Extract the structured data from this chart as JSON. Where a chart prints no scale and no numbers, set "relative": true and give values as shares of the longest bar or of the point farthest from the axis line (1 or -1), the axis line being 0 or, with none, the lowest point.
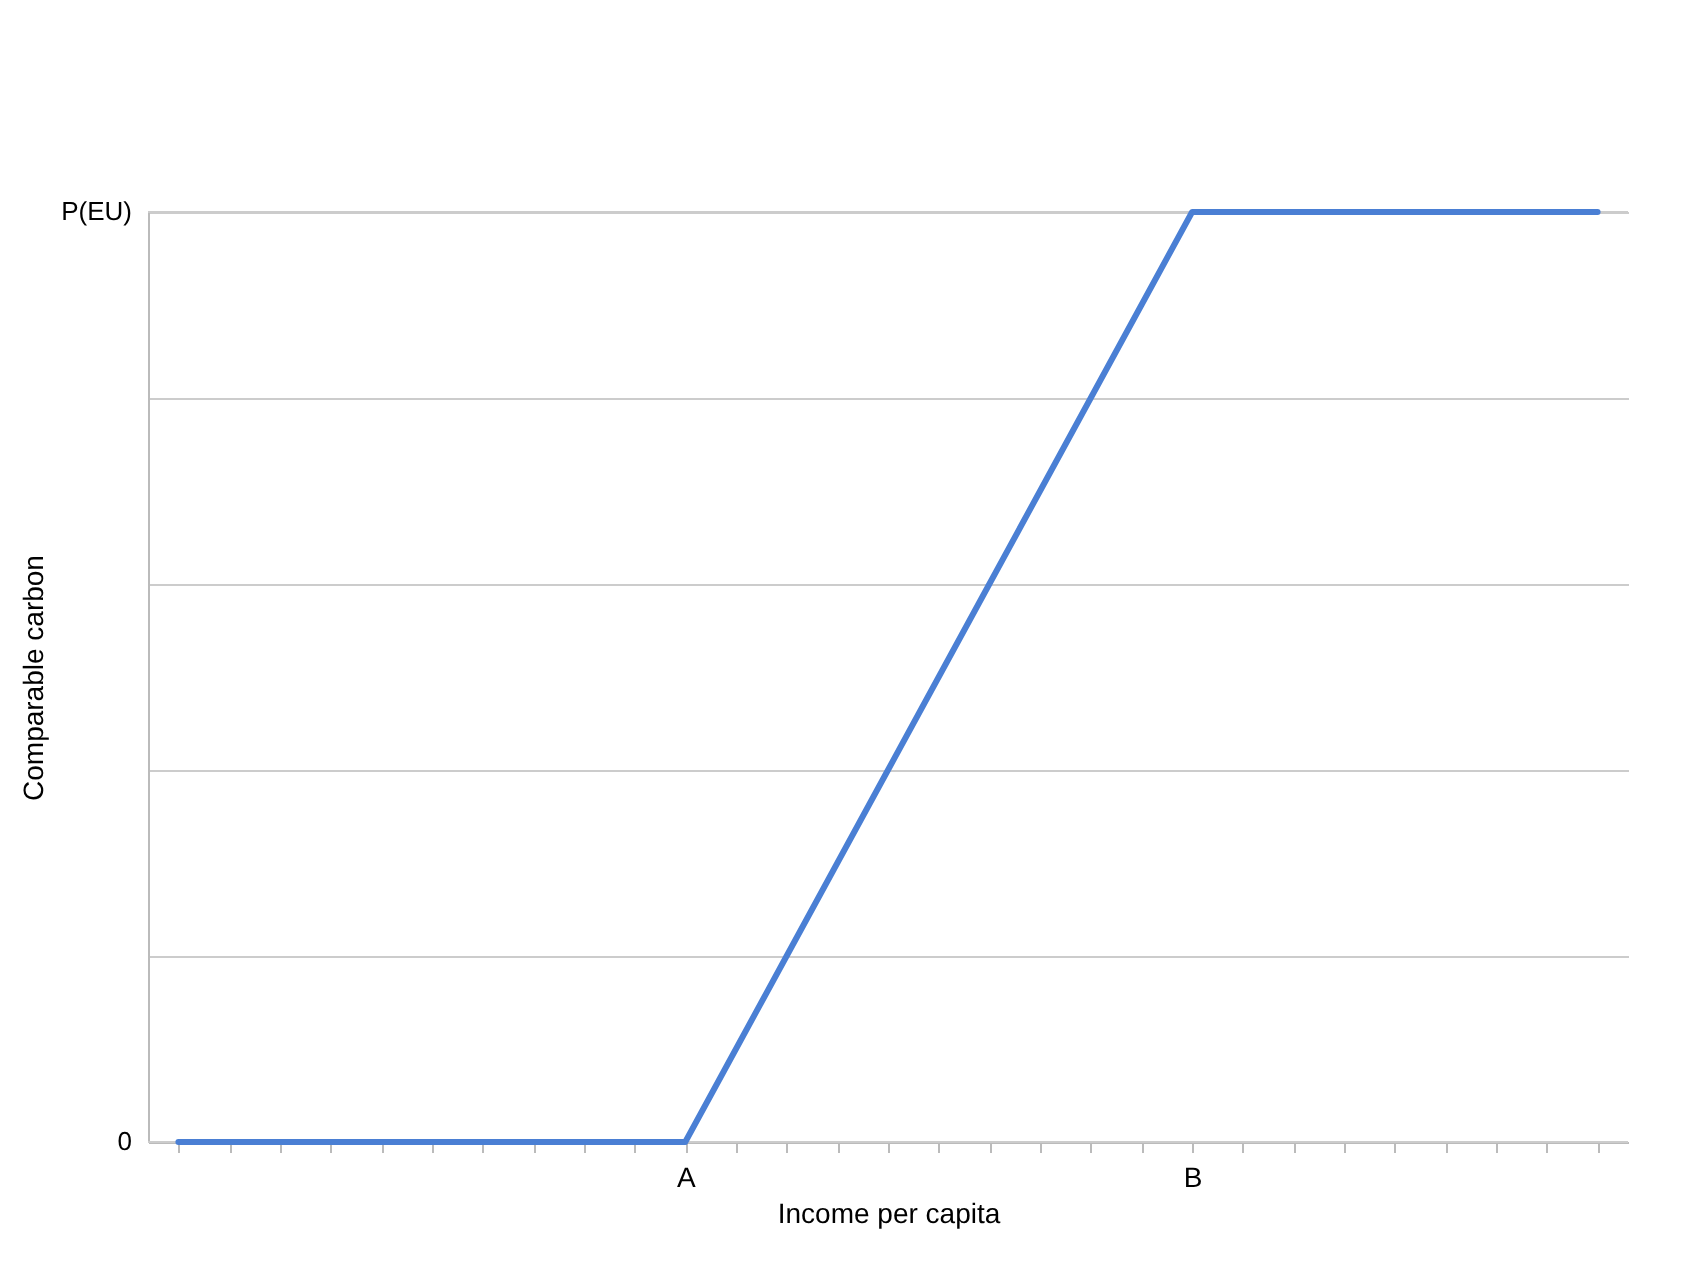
{
  "chart_data": {
    "type": "line",
    "xlabel": "Income per capita",
    "ylabel": "Comparable carbon",
    "relative": true,
    "categories": [
      null,
      null,
      null,
      null,
      null,
      null,
      null,
      null,
      null,
      null,
      "A",
      null,
      null,
      null,
      null,
      null,
      null,
      null,
      null,
      null,
      "B",
      null,
      null,
      null,
      null,
      null,
      null,
      null,
      null
    ],
    "series": [
      {
        "color": "#4a7fd4",
        "values": [
          0,
          0,
          0,
          0,
          0,
          0,
          0,
          0,
          0,
          0,
          0,
          0.1,
          0.2,
          0.3,
          0.4,
          0.5,
          0.6,
          0.7,
          0.8,
          0.9,
          1,
          1,
          1,
          1,
          1,
          1,
          1,
          1,
          1
        ]
      }
    ],
    "ref_lines": [
      {
        "axis": "y",
        "value": 0,
        "label": "0",
        "color": "#cccccc"
      },
      {
        "axis": "y",
        "value": 1,
        "label": "P(EU)",
        "color": "#cccccc"
      }
    ],
    "grid": "y",
    "marker": "none",
    "line_style": "solid"
  }
}
